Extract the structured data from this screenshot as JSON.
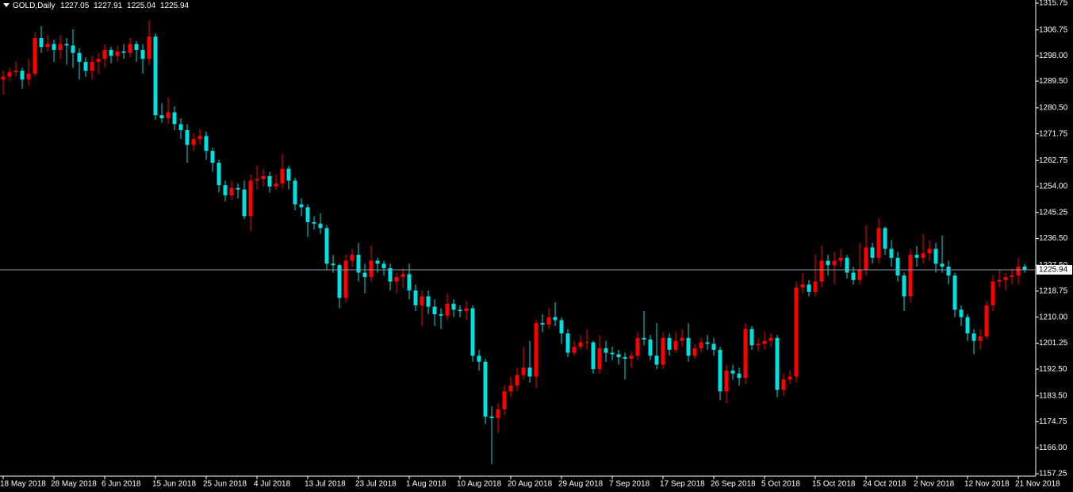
{
  "chart_data": {
    "type": "candlestick",
    "symbol": "GOLD,Daily",
    "up_color": "#ff0000",
    "down_color": "#00e0e0",
    "price_line_color": "#8c9aa6",
    "ylim": [
      1157.25,
      1315.75
    ],
    "yticks": [
      {
        "value": 1157.25,
        "label": "1157.25"
      },
      {
        "value": 1166,
        "label": "1166.00"
      },
      {
        "value": 1174.75,
        "label": "1174.75"
      },
      {
        "value": 1183.5,
        "label": "1183.50"
      },
      {
        "value": 1192.5,
        "label": "1192.50"
      },
      {
        "value": 1201.25,
        "label": "1201.25"
      },
      {
        "value": 1210,
        "label": "1210.00"
      },
      {
        "value": 1218.75,
        "label": "1218.75"
      },
      {
        "value": 1227.5,
        "label": "1227.50"
      },
      {
        "value": 1236.5,
        "label": "1236.50"
      },
      {
        "value": 1245.25,
        "label": "1245.25"
      },
      {
        "value": 1254,
        "label": "1254.00"
      },
      {
        "value": 1262.75,
        "label": "1262.75"
      },
      {
        "value": 1271.75,
        "label": "1271.75"
      },
      {
        "value": 1280.5,
        "label": "1280.50"
      },
      {
        "value": 1289.5,
        "label": "1289.50"
      },
      {
        "value": 1298,
        "label": "1298.00"
      },
      {
        "value": 1306.75,
        "label": "1306.75"
      },
      {
        "value": 1315.75,
        "label": "1315.75"
      }
    ],
    "xticks": [
      {
        "value": 0,
        "label": "18 May 2018"
      },
      {
        "value": 8,
        "label": "28 May 2018"
      },
      {
        "value": 16,
        "label": "6 Jun 2018"
      },
      {
        "value": 24,
        "label": "15 Jun 2018"
      },
      {
        "value": 32,
        "label": "25 Jun 2018"
      },
      {
        "value": 40,
        "label": "4 Jul 2018"
      },
      {
        "value": 48,
        "label": "13 Jul 2018"
      },
      {
        "value": 56,
        "label": "23 Jul 2018"
      },
      {
        "value": 64,
        "label": "1 Aug 2018"
      },
      {
        "value": 72,
        "label": "10 Aug 2018"
      },
      {
        "value": 80,
        "label": "20 Aug 2018"
      },
      {
        "value": 88,
        "label": "29 Aug 2018"
      },
      {
        "value": 96,
        "label": "7 Sep 2018"
      },
      {
        "value": 104,
        "label": "17 Sep 2018"
      },
      {
        "value": 112,
        "label": "26 Sep 2018"
      },
      {
        "value": 120,
        "label": "5 Oct 2018"
      },
      {
        "value": 128,
        "label": "15 Oct 2018"
      },
      {
        "value": 136,
        "label": "24 Oct 2018"
      },
      {
        "value": 144,
        "label": "2 Nov 2018"
      },
      {
        "value": 152,
        "label": "12 Nov 2018"
      },
      {
        "value": 160,
        "label": "21 Nov 2018"
      }
    ],
    "open": [
      1290,
      1291,
      1292.5,
      1293,
      1290,
      1292,
      1304,
      1301,
      1302,
      1300,
      1302,
      1301.5,
      1299,
      1296,
      1293,
      1296,
      1297,
      1300,
      1298,
      1299.5,
      1299,
      1302,
      1300,
      1297,
      1304.5,
      1278,
      1277,
      1279,
      1275,
      1273,
      1268,
      1270,
      1271,
      1266,
      1262,
      1254.5,
      1251,
      1253.5,
      1253,
      1244,
      1256,
      1256.5,
      1257.5,
      1254,
      1255,
      1260,
      1256,
      1248,
      1247,
      1242,
      1241.5,
      1240,
      1228,
      1227.5,
      1216.5,
      1229,
      1231,
      1225,
      1223.5,
      1229,
      1228,
      1226.5,
      1222,
      1223.5,
      1224.5,
      1219,
      1214,
      1217,
      1213.5,
      1211,
      1210.5,
      1214.5,
      1212.5,
      1212,
      1213,
      1197,
      1195,
      1176.5,
      1176,
      1179,
      1185,
      1187,
      1190.5,
      1193,
      1190,
      1208,
      1207.5,
      1210,
      1209,
      1204.5,
      1198,
      1200,
      1201.5,
      1201.5,
      1192.5,
      1199.5,
      1198,
      1197.5,
      1196.5,
      1196,
      1197,
      1203,
      1202.5,
      1197,
      1194,
      1203,
      1199,
      1202,
      1203,
      1197,
      1199.5,
      1201.5,
      1201,
      1199,
      1185,
      1192,
      1191,
      1189.5,
      1206,
      1200.5,
      1201,
      1202,
      1203,
      1185.5,
      1189,
      1190,
      1220,
      1221,
      1218.5,
      1222,
      1229,
      1227.5,
      1229,
      1230,
      1225,
      1222.5,
      1226,
      1233.5,
      1230,
      1240,
      1233,
      1230,
      1224,
      1217,
      1231,
      1230,
      1231.5,
      1233,
      1228,
      1227,
      1224,
      1212.5,
      1210,
      1204.5,
      1202,
      1203.5,
      1214,
      1222,
      1222.5,
      1223.5,
      1224,
      1227.05
    ],
    "high": [
      1293,
      1294,
      1296,
      1294,
      1297,
      1306,
      1308,
      1305,
      1303.5,
      1305,
      1304,
      1307,
      1300.5,
      1297.5,
      1298,
      1299,
      1302,
      1301,
      1301.5,
      1302,
      1304,
      1303,
      1302,
      1310,
      1305.5,
      1282,
      1284,
      1281,
      1277,
      1275,
      1272,
      1273.5,
      1272.5,
      1267,
      1263,
      1256,
      1256,
      1255,
      1256,
      1258,
      1261,
      1260,
      1259,
      1258,
      1265,
      1261,
      1257,
      1250,
      1248,
      1244,
      1245,
      1241,
      1231,
      1228,
      1231,
      1233,
      1235,
      1228,
      1234,
      1230,
      1229,
      1228,
      1225,
      1226.5,
      1228,
      1221,
      1219,
      1219,
      1216,
      1213,
      1218,
      1216,
      1214,
      1215.5,
      1214,
      1199,
      1196,
      1180,
      1181,
      1187,
      1190,
      1193,
      1200,
      1202,
      1209,
      1211,
      1213,
      1215,
      1210,
      1206,
      1202,
      1204,
      1206,
      1202,
      1204,
      1202,
      1200,
      1199,
      1198,
      1198.5,
      1205,
      1212,
      1204,
      1208,
      1205,
      1204.5,
      1205,
      1206,
      1208,
      1201,
      1203,
      1204,
      1203,
      1200,
      1194,
      1194,
      1193,
      1208,
      1207,
      1203,
      1205,
      1204.5,
      1204,
      1191,
      1192,
      1222,
      1225,
      1222.5,
      1231,
      1234,
      1231,
      1232,
      1233,
      1231,
      1227,
      1235,
      1241,
      1235,
      1243.5,
      1240.5,
      1236,
      1232,
      1225,
      1233,
      1234,
      1238,
      1236,
      1235,
      1237.5,
      1229,
      1225,
      1214,
      1211,
      1206,
      1206,
      1215.5,
      1224,
      1226,
      1225,
      1226.5,
      1230,
      1227.91
    ],
    "low": [
      1285,
      1289.5,
      1291,
      1287,
      1288,
      1291,
      1299,
      1299.5,
      1296,
      1297,
      1295,
      1294,
      1290,
      1291,
      1290,
      1292,
      1294,
      1295.5,
      1296,
      1297,
      1297.5,
      1296,
      1292,
      1295,
      1276.5,
      1275.5,
      1275,
      1273,
      1270,
      1262,
      1266,
      1268,
      1263,
      1259,
      1252,
      1249,
      1249.5,
      1250,
      1243,
      1239,
      1253,
      1254,
      1252,
      1253,
      1253.5,
      1253,
      1246,
      1244,
      1237,
      1239.5,
      1238,
      1226,
      1225,
      1213,
      1215,
      1227,
      1222,
      1218,
      1222,
      1225,
      1224,
      1219,
      1218,
      1220,
      1216,
      1212,
      1207,
      1211,
      1207,
      1206,
      1209,
      1210,
      1210,
      1209,
      1195,
      1192,
      1174,
      1160.5,
      1171,
      1177,
      1183,
      1185,
      1189,
      1188,
      1186,
      1205,
      1206,
      1207,
      1201,
      1196.5,
      1197,
      1199,
      1199,
      1191,
      1191,
      1195,
      1195.5,
      1194,
      1189,
      1193,
      1195.5,
      1200.5,
      1195.5,
      1192.5,
      1192.5,
      1197,
      1198,
      1200,
      1195,
      1196,
      1198,
      1199,
      1197,
      1182,
      1181,
      1189,
      1187,
      1187.5,
      1199,
      1198.5,
      1199,
      1200,
      1183,
      1183.5,
      1187.5,
      1188,
      1218,
      1217,
      1217,
      1220,
      1224,
      1221,
      1227,
      1223,
      1221,
      1221,
      1224,
      1228,
      1228,
      1231,
      1227,
      1222,
      1212,
      1215,
      1227,
      1228,
      1229,
      1225,
      1225,
      1221,
      1210,
      1207,
      1202,
      1197.5,
      1199,
      1202.5,
      1212,
      1220,
      1219,
      1221,
      1221,
      1225.04
    ],
    "close": [
      1291,
      1292.5,
      1293,
      1290,
      1292,
      1304,
      1301,
      1302,
      1300,
      1302,
      1301.5,
      1299,
      1296,
      1293,
      1296,
      1297,
      1300,
      1298,
      1299.5,
      1299,
      1302,
      1300,
      1297,
      1304.5,
      1278,
      1277,
      1279,
      1275,
      1273,
      1268,
      1270,
      1271,
      1266,
      1262,
      1254.5,
      1251,
      1253.5,
      1253,
      1244,
      1256,
      1256.5,
      1257.5,
      1254,
      1255,
      1260,
      1256,
      1248,
      1247,
      1242,
      1241.5,
      1240,
      1228,
      1227.5,
      1216.5,
      1229,
      1231,
      1225,
      1223.5,
      1229,
      1228,
      1226.5,
      1222,
      1223.5,
      1224.5,
      1219,
      1214,
      1217,
      1213.5,
      1211,
      1210.5,
      1214.5,
      1212.5,
      1212,
      1213,
      1197,
      1195,
      1176.5,
      1176,
      1179,
      1185,
      1187,
      1190.5,
      1193,
      1190,
      1208,
      1207.5,
      1210,
      1209,
      1204.5,
      1198,
      1200,
      1201.5,
      1201.5,
      1192.5,
      1199.5,
      1198,
      1197.5,
      1196.5,
      1196,
      1197,
      1203,
      1202.5,
      1197,
      1194,
      1203,
      1199,
      1202,
      1203,
      1197,
      1199.5,
      1201.5,
      1201,
      1199,
      1185,
      1192,
      1191,
      1189.5,
      1206,
      1200.5,
      1201,
      1202,
      1203,
      1185.5,
      1189,
      1190,
      1220,
      1221,
      1218.5,
      1222,
      1229,
      1227.5,
      1229,
      1230,
      1225,
      1222.5,
      1226,
      1233.5,
      1230,
      1240,
      1233,
      1230,
      1224,
      1217,
      1231,
      1230,
      1231.5,
      1233,
      1228,
      1227,
      1224,
      1212.5,
      1210,
      1204.5,
      1202,
      1203.5,
      1214,
      1222,
      1222.5,
      1223.5,
      1224,
      1227.05,
      1225.94
    ]
  }
}
